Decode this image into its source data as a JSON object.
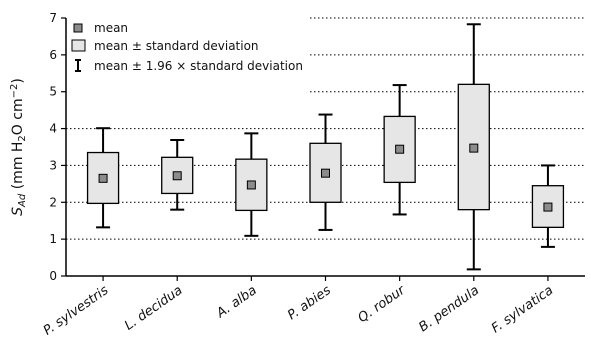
{
  "colors": {
    "box_fill": "#e6e6e6",
    "mean_fill": "#8c8c8c",
    "stroke": "#000000",
    "grid": "#000000"
  },
  "legend": {
    "placement": "top-left",
    "items": [
      {
        "symbol": "mean-square",
        "label": "mean"
      },
      {
        "symbol": "box",
        "label": "mean ± standard deviation"
      },
      {
        "symbol": "whisker",
        "label": "mean ± 1.96 × standard deviation"
      }
    ]
  },
  "chart_data": {
    "type": "box",
    "title": "",
    "xlabel": "",
    "ylabel_parts": {
      "s": "S",
      "sub": "Ad",
      "unit_open": " (mm H",
      "unit_sub": "2",
      "unit_mid": "O cm",
      "unit_sup": "−2",
      "unit_close": ")"
    },
    "ylim": [
      0,
      7
    ],
    "yticks": [
      0,
      1,
      2,
      3,
      4,
      5,
      6,
      7
    ],
    "grid": "horizontal dotted",
    "categories": [
      "P. sylvestris",
      "L. decidua",
      "A. alba",
      "P. abies",
      "Q. robur",
      "B. pendula",
      "F. sylvatica"
    ],
    "series": [
      {
        "mean": [
          2.65,
          2.72,
          2.47,
          2.79,
          3.44,
          3.47,
          1.87
        ],
        "box_low": [
          1.97,
          2.24,
          1.78,
          2.0,
          2.54,
          1.8,
          1.32
        ],
        "box_high": [
          3.35,
          3.22,
          3.17,
          3.6,
          4.33,
          5.2,
          2.45
        ],
        "whisker_low": [
          1.32,
          1.8,
          1.09,
          1.25,
          1.67,
          0.18,
          0.79
        ],
        "whisker_high": [
          4.01,
          3.69,
          3.87,
          4.38,
          5.18,
          6.83,
          3.0
        ]
      }
    ]
  }
}
